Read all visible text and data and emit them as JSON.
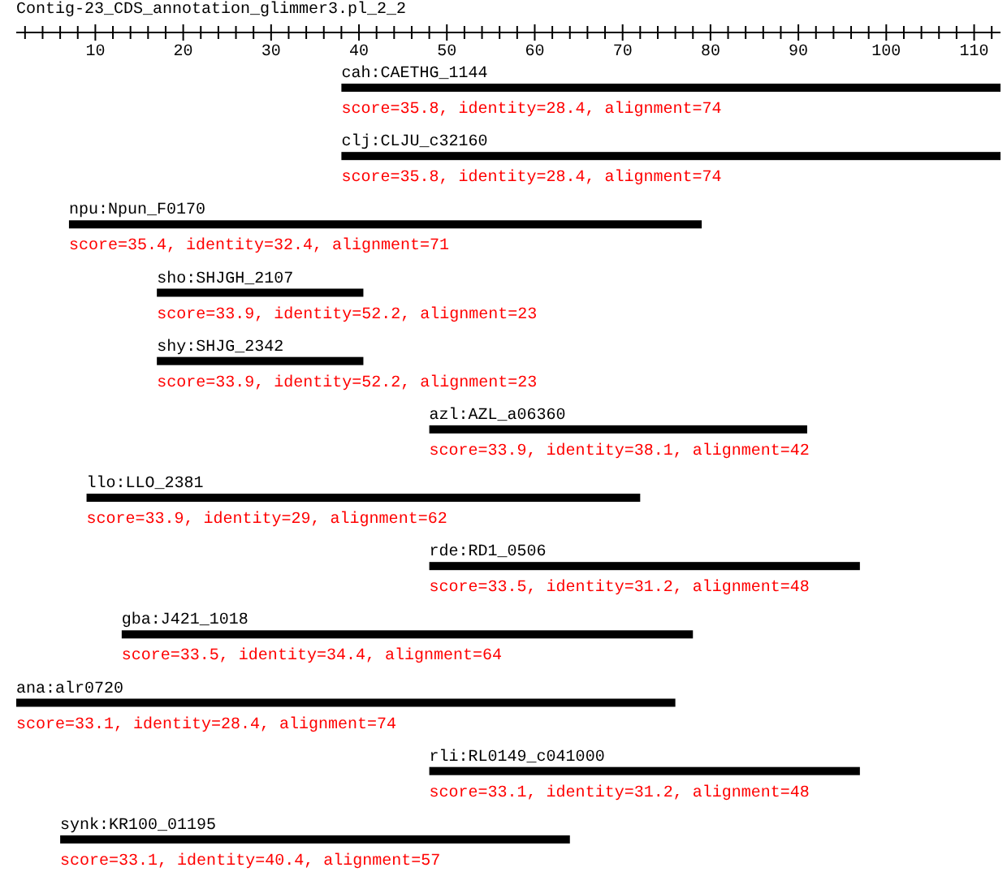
{
  "chart_data": {
    "type": "bar",
    "orientation": "horizontal",
    "title": "Contig-23_CDS_annotation_glimmer3.pl_2_2",
    "categories": [
      "cah:CAETHG_1144",
      "clj:CLJU_c32160",
      "npu:Npun_F0170",
      "sho:SHJGH_2107",
      "shy:SHJG_2342",
      "azl:AZL_a06360",
      "llo:LLO_2381",
      "rde:RD1_0506",
      "gba:J421_1018",
      "ana:alr0720",
      "rli:RL0149_c041000",
      "synk:KR100_01195"
    ],
    "base": [
      38,
      38,
      7,
      17,
      17,
      48,
      9,
      48,
      13,
      1,
      48,
      6
    ],
    "values": [
      75,
      75,
      72,
      23.5,
      23.5,
      43,
      63,
      49,
      65,
      75,
      49,
      58
    ],
    "color": "#000000",
    "xlim": [
      1,
      113
    ],
    "xticks": [
      {
        "value": 2,
        "label": null
      },
      {
        "value": 4,
        "label": null
      },
      {
        "value": 6,
        "label": null
      },
      {
        "value": 8,
        "label": null
      },
      10,
      {
        "value": 12,
        "label": null
      },
      {
        "value": 14,
        "label": null
      },
      {
        "value": 16,
        "label": null
      },
      {
        "value": 18,
        "label": null
      },
      20,
      {
        "value": 22,
        "label": null
      },
      {
        "value": 24,
        "label": null
      },
      {
        "value": 26,
        "label": null
      },
      {
        "value": 28,
        "label": null
      },
      30,
      {
        "value": 32,
        "label": null
      },
      {
        "value": 34,
        "label": null
      },
      {
        "value": 36,
        "label": null
      },
      {
        "value": 38,
        "label": null
      },
      40,
      {
        "value": 42,
        "label": null
      },
      {
        "value": 44,
        "label": null
      },
      {
        "value": 46,
        "label": null
      },
      {
        "value": 48,
        "label": null
      },
      50,
      {
        "value": 52,
        "label": null
      },
      {
        "value": 54,
        "label": null
      },
      {
        "value": 56,
        "label": null
      },
      {
        "value": 58,
        "label": null
      },
      60,
      {
        "value": 62,
        "label": null
      },
      {
        "value": 64,
        "label": null
      },
      {
        "value": 66,
        "label": null
      },
      {
        "value": 68,
        "label": null
      },
      70,
      {
        "value": 72,
        "label": null
      },
      {
        "value": 74,
        "label": null
      },
      {
        "value": 76,
        "label": null
      },
      {
        "value": 78,
        "label": null
      },
      80,
      {
        "value": 82,
        "label": null
      },
      {
        "value": 84,
        "label": null
      },
      {
        "value": 86,
        "label": null
      },
      {
        "value": 88,
        "label": null
      },
      90,
      {
        "value": 92,
        "label": null
      },
      {
        "value": 94,
        "label": null
      },
      {
        "value": 96,
        "label": null
      },
      {
        "value": 98,
        "label": null
      },
      100,
      {
        "value": 102,
        "label": null
      },
      {
        "value": 104,
        "label": null
      },
      {
        "value": 106,
        "label": null
      },
      {
        "value": 108,
        "label": null
      },
      110,
      {
        "value": 112,
        "label": null
      }
    ],
    "annotations": [
      "score=35.8, identity=28.4, alignment=74",
      "score=35.8, identity=28.4, alignment=74",
      "score=35.4, identity=32.4, alignment=71",
      "score=33.9, identity=52.2, alignment=23",
      "score=33.9, identity=52.2, alignment=23",
      "score=33.9, identity=38.1, alignment=42",
      "score=33.9, identity=29, alignment=62",
      "score=33.5, identity=31.2, alignment=48",
      "score=33.5, identity=34.4, alignment=64",
      "score=33.1, identity=28.4, alignment=74",
      "score=33.1, identity=31.2, alignment=48",
      "score=33.1, identity=40.4, alignment=57"
    ]
  }
}
